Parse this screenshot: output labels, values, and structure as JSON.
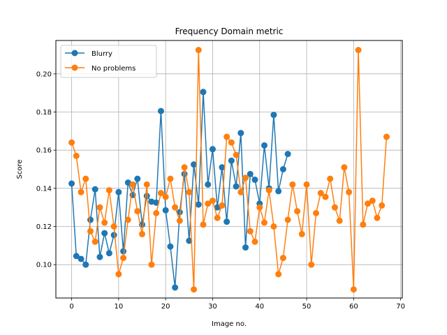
{
  "chart_data": {
    "type": "line",
    "title": "Frequency Domain metric",
    "xlabel": "Image no.",
    "ylabel": "Score",
    "xlim": [
      -3.35,
      70.35
    ],
    "ylim": [
      0.0825,
      0.2175
    ],
    "xticks": [
      0,
      10,
      20,
      30,
      40,
      50,
      60,
      70
    ],
    "yticks": [
      0.1,
      0.12,
      0.14,
      0.16,
      0.18,
      0.2
    ],
    "ytick_labels": [
      "0.10",
      "0.12",
      "0.14",
      "0.16",
      "0.18",
      "0.20"
    ],
    "grid": true,
    "legend_position": "upper-left",
    "series": [
      {
        "name": "Blurry",
        "color": "#1f77b4",
        "marker": "circle",
        "x": [
          0,
          1,
          2,
          3,
          4,
          5,
          6,
          7,
          8,
          9,
          10,
          11,
          12,
          13,
          14,
          15,
          16,
          17,
          18,
          19,
          20,
          21,
          22,
          23,
          24,
          25,
          26,
          27,
          28,
          29,
          30,
          31,
          32,
          33,
          34,
          35,
          36,
          37,
          38,
          39,
          40,
          41,
          42,
          43,
          44,
          45,
          46
        ],
        "values": [
          0.1425,
          0.1045,
          0.103,
          0.1,
          0.1235,
          0.1395,
          0.104,
          0.1165,
          0.106,
          0.1155,
          0.138,
          0.107,
          0.143,
          0.1365,
          0.145,
          0.121,
          0.136,
          0.133,
          0.1325,
          0.1805,
          0.1285,
          0.1095,
          0.088,
          0.1275,
          0.1475,
          0.1125,
          0.1525,
          0.1315,
          0.1905,
          0.142,
          0.1605,
          0.13,
          0.151,
          0.1225,
          0.1545,
          0.141,
          0.169,
          0.109,
          0.1475,
          0.1445,
          0.132,
          0.1625,
          0.14,
          0.1785,
          0.1385,
          0.15,
          0.158
        ]
      },
      {
        "name": "No problems",
        "color": "#ff7f0e",
        "marker": "circle",
        "x": [
          0,
          1,
          2,
          3,
          4,
          5,
          6,
          7,
          8,
          9,
          10,
          11,
          12,
          13,
          14,
          15,
          16,
          17,
          18,
          19,
          20,
          21,
          22,
          23,
          24,
          25,
          26,
          27,
          28,
          29,
          30,
          31,
          32,
          33,
          34,
          35,
          36,
          37,
          38,
          39,
          40,
          41,
          42,
          43,
          44,
          45,
          46,
          47,
          48,
          49,
          50,
          51,
          52,
          53,
          54,
          55,
          56,
          57,
          58,
          59,
          60,
          61,
          62,
          63,
          64,
          65,
          66,
          67
        ],
        "values": [
          0.164,
          0.157,
          0.138,
          0.145,
          0.1175,
          0.112,
          0.13,
          0.122,
          0.139,
          0.12,
          0.095,
          0.1035,
          0.1235,
          0.142,
          0.128,
          0.116,
          0.142,
          0.1,
          0.127,
          0.1375,
          0.1355,
          0.145,
          0.13,
          0.123,
          0.151,
          0.138,
          0.087,
          0.2125,
          0.121,
          0.132,
          0.1335,
          0.1245,
          0.131,
          0.167,
          0.164,
          0.1575,
          0.138,
          0.1455,
          0.1175,
          0.112,
          0.13,
          0.122,
          0.139,
          0.12,
          0.095,
          0.1035,
          0.1235,
          0.142,
          0.128,
          0.116,
          0.142,
          0.1,
          0.127,
          0.1375,
          0.1355,
          0.145,
          0.13,
          0.123,
          0.151,
          0.138,
          0.087,
          0.2125,
          0.121,
          0.132,
          0.1335,
          0.1245,
          0.131,
          0.167
        ]
      }
    ]
  }
}
